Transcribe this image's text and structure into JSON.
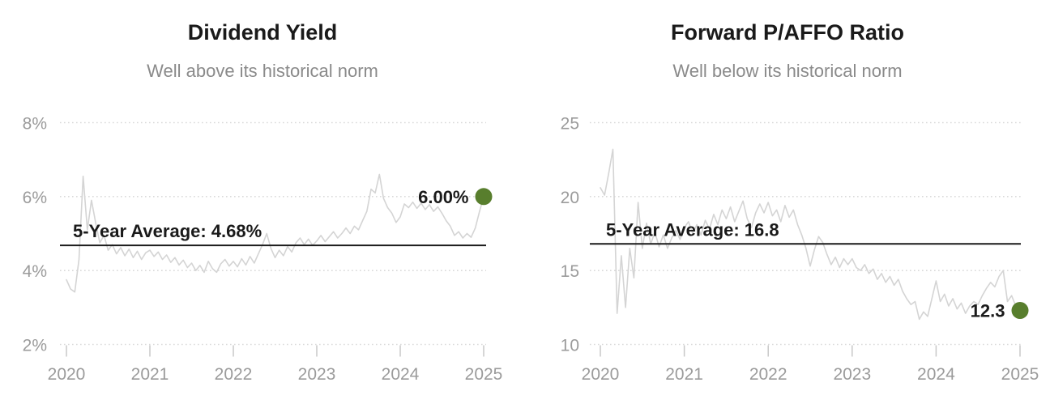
{
  "page": {
    "background": "#ffffff"
  },
  "colors": {
    "series_line": "#d4d4d4",
    "average_line": "#1a1a1a",
    "endpoint_dot": "#587e2d",
    "title_text": "#1a1a1a",
    "subtitle_text": "#8a8a8a",
    "axis_text": "#9b9b9b",
    "gridline": "#d9d9d9",
    "tick_mark": "#c8c8c8"
  },
  "chart_data": [
    {
      "type": "line",
      "title": "Dividend Yield",
      "subtitle": "Well above its historical norm",
      "x_tick_labels": [
        "2020",
        "2021",
        "2022",
        "2023",
        "2024",
        "2025"
      ],
      "y_tick_labels": [
        "8%",
        "6%",
        "4%",
        "2%"
      ],
      "y_tick_values": [
        8,
        6,
        4,
        2
      ],
      "ylim": [
        2,
        8
      ],
      "xlim": [
        2020,
        2025
      ],
      "grid": "horizontal-dotted",
      "legend": "none",
      "x_start": 2020,
      "x_step": 0.05,
      "values": [
        3.75,
        3.5,
        3.42,
        4.3,
        6.55,
        5.1,
        5.9,
        5.3,
        4.75,
        4.95,
        4.55,
        4.7,
        4.45,
        4.62,
        4.4,
        4.58,
        4.35,
        4.52,
        4.3,
        4.48,
        4.55,
        4.38,
        4.5,
        4.3,
        4.42,
        4.22,
        4.35,
        4.15,
        4.28,
        4.08,
        4.2,
        4.0,
        4.14,
        3.95,
        4.25,
        4.05,
        3.95,
        4.18,
        4.3,
        4.12,
        4.25,
        4.1,
        4.32,
        4.15,
        4.38,
        4.2,
        4.45,
        4.7,
        5.0,
        4.6,
        4.35,
        4.55,
        4.4,
        4.65,
        4.5,
        4.75,
        4.88,
        4.7,
        4.85,
        4.68,
        4.8,
        4.95,
        4.78,
        4.92,
        5.05,
        4.88,
        5.0,
        5.15,
        5.0,
        5.2,
        5.1,
        5.35,
        5.6,
        6.2,
        6.1,
        6.6,
        5.95,
        5.7,
        5.55,
        5.3,
        5.45,
        5.8,
        5.7,
        5.85,
        5.68,
        5.82,
        5.65,
        5.78,
        5.6,
        5.72,
        5.55,
        5.35,
        5.2,
        4.95,
        5.05,
        4.88,
        5.0,
        4.9,
        5.15,
        5.6,
        6.0
      ],
      "average": {
        "value": 4.68,
        "label": "5-Year Average: 4.68%"
      },
      "endpoint": {
        "value": 6.0,
        "label": "6.00%"
      }
    },
    {
      "type": "line",
      "title": "Forward P/AFFO Ratio",
      "subtitle": "Well below its historical norm",
      "x_tick_labels": [
        "2020",
        "2021",
        "2022",
        "2023",
        "2024",
        "2025"
      ],
      "y_tick_labels": [
        "25",
        "20",
        "15",
        "10"
      ],
      "y_tick_values": [
        25,
        20,
        15,
        10
      ],
      "ylim": [
        10,
        25
      ],
      "xlim": [
        2020,
        2025
      ],
      "grid": "horizontal-dotted",
      "legend": "none",
      "x_start": 2020,
      "x_step": 0.05,
      "values": [
        20.6,
        20.1,
        21.6,
        23.2,
        12.1,
        16.0,
        12.5,
        16.5,
        14.5,
        19.6,
        16.5,
        18.2,
        16.8,
        17.6,
        16.6,
        17.4,
        16.5,
        17.2,
        17.7,
        17.1,
        17.9,
        18.3,
        17.5,
        18.1,
        17.4,
        18.4,
        17.8,
        18.8,
        18.1,
        19.1,
        18.5,
        19.3,
        18.3,
        19.0,
        19.7,
        18.5,
        17.9,
        18.9,
        19.5,
        18.9,
        19.6,
        18.7,
        19.1,
        18.3,
        19.4,
        18.6,
        19.1,
        18.1,
        17.4,
        16.5,
        15.3,
        16.4,
        17.3,
        16.9,
        16.1,
        15.4,
        15.9,
        15.2,
        15.8,
        15.4,
        15.8,
        15.2,
        15.0,
        15.4,
        14.8,
        15.1,
        14.4,
        14.8,
        14.2,
        14.6,
        14.0,
        14.4,
        13.6,
        13.1,
        12.7,
        12.9,
        11.7,
        12.2,
        11.9,
        13.1,
        14.3,
        12.9,
        13.4,
        12.6,
        13.1,
        12.4,
        12.8,
        12.1,
        12.6,
        12.9,
        12.7,
        13.3,
        13.8,
        14.2,
        13.9,
        14.6,
        15.0,
        12.9,
        13.3,
        12.6,
        12.3
      ],
      "average": {
        "value": 16.8,
        "label": "5-Year Average: 16.8"
      },
      "endpoint": {
        "value": 12.3,
        "label": "12.3"
      }
    }
  ]
}
